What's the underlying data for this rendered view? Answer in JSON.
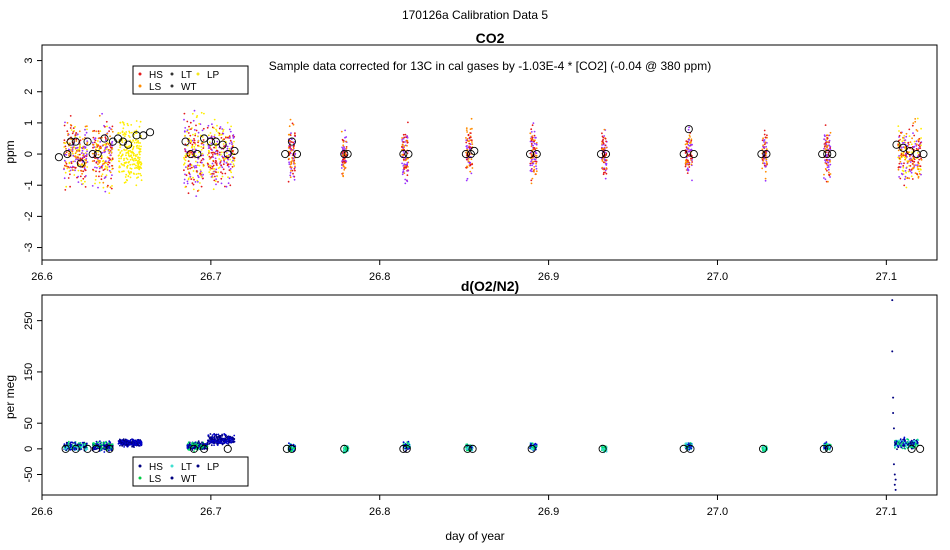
{
  "figure": {
    "title": "170126a   Calibration Data 5",
    "xlabel": "day of year"
  },
  "chart_data": [
    {
      "type": "scatter",
      "title": "CO2",
      "ylabel": "ppm",
      "annotation": "Sample data corrected for 13C in cal gases by -1.03E-4 * [CO2] (-0.04 @ 380 ppm)",
      "xlim": [
        26.6,
        27.13
      ],
      "ylim": [
        -3.4,
        3.5
      ],
      "xticks": [
        26.6,
        26.7,
        26.8,
        26.9,
        27.0,
        27.1
      ],
      "yticks": [
        -3,
        -2,
        -1,
        0,
        1,
        2,
        3
      ],
      "legend": {
        "position": "top-left",
        "entries": [
          {
            "name": "HS",
            "color": "#e41a1c"
          },
          {
            "name": "LT",
            "color": "#333333"
          },
          {
            "name": "LP",
            "color": "#f5e61a"
          },
          {
            "name": "LS",
            "color": "#ff8c00"
          },
          {
            "name": "WT",
            "color": "#333333"
          }
        ]
      },
      "series_colors": {
        "HS": "#e41a1c",
        "LS": "#ff8c00",
        "LP": "#ffee00",
        "WT": "#9933ff"
      },
      "clusters": [
        {
          "x": 26.62,
          "w": 0.014,
          "spread": 1.4,
          "colors": [
            "WT",
            "HS",
            "LS",
            "LP"
          ]
        },
        {
          "x": 26.636,
          "w": 0.012,
          "spread": 1.5,
          "colors": [
            "HS",
            "WT",
            "LP",
            "LS"
          ]
        },
        {
          "x": 26.652,
          "w": 0.014,
          "spread": 1.4,
          "colors": [
            "LP"
          ]
        },
        {
          "x": 26.69,
          "w": 0.012,
          "spread": 1.6,
          "colors": [
            "LP",
            "WT",
            "HS"
          ]
        },
        {
          "x": 26.706,
          "w": 0.016,
          "spread": 1.5,
          "colors": [
            "LP",
            "WT",
            "HS"
          ]
        },
        {
          "x": 26.748,
          "w": 0.004,
          "spread": 1.2,
          "colors": [
            "HS",
            "WT",
            "LS"
          ]
        },
        {
          "x": 26.779,
          "w": 0.003,
          "spread": 1.0,
          "colors": [
            "LS",
            "HS",
            "WT"
          ]
        },
        {
          "x": 26.815,
          "w": 0.004,
          "spread": 1.2,
          "colors": [
            "HS",
            "WT",
            "LS"
          ]
        },
        {
          "x": 26.853,
          "w": 0.004,
          "spread": 1.2,
          "colors": [
            "HS",
            "LS",
            "WT"
          ]
        },
        {
          "x": 26.891,
          "w": 0.004,
          "spread": 1.2,
          "colors": [
            "HS",
            "LS",
            "WT"
          ]
        },
        {
          "x": 26.933,
          "w": 0.003,
          "spread": 1.0,
          "colors": [
            "HS",
            "LS",
            "WT"
          ]
        },
        {
          "x": 26.983,
          "w": 0.004,
          "spread": 1.2,
          "colors": [
            "HS",
            "WT",
            "LS"
          ]
        },
        {
          "x": 27.028,
          "w": 0.003,
          "spread": 1.0,
          "colors": [
            "LS",
            "HS",
            "WT"
          ]
        },
        {
          "x": 27.065,
          "w": 0.004,
          "spread": 1.2,
          "colors": [
            "HS",
            "WT",
            "LS"
          ]
        },
        {
          "x": 27.114,
          "w": 0.014,
          "spread": 1.3,
          "colors": [
            "LP",
            "WT",
            "HS",
            "LS"
          ]
        }
      ],
      "means": [
        {
          "x": 26.61,
          "y": -0.1
        },
        {
          "x": 26.615,
          "y": 0.0
        },
        {
          "x": 26.617,
          "y": 0.4
        },
        {
          "x": 26.62,
          "y": 0.4
        },
        {
          "x": 26.623,
          "y": -0.3
        },
        {
          "x": 26.627,
          "y": 0.4
        },
        {
          "x": 26.63,
          "y": 0.0
        },
        {
          "x": 26.633,
          "y": 0.0
        },
        {
          "x": 26.637,
          "y": 0.5
        },
        {
          "x": 26.642,
          "y": 0.4
        },
        {
          "x": 26.645,
          "y": 0.5
        },
        {
          "x": 26.648,
          "y": 0.4
        },
        {
          "x": 26.651,
          "y": 0.3
        },
        {
          "x": 26.656,
          "y": 0.6
        },
        {
          "x": 26.66,
          "y": 0.6
        },
        {
          "x": 26.664,
          "y": 0.7
        },
        {
          "x": 26.685,
          "y": 0.4
        },
        {
          "x": 26.688,
          "y": 0.0
        },
        {
          "x": 26.692,
          "y": 0.0
        },
        {
          "x": 26.696,
          "y": 0.5
        },
        {
          "x": 26.7,
          "y": 0.4
        },
        {
          "x": 26.703,
          "y": 0.4
        },
        {
          "x": 26.707,
          "y": 0.3
        },
        {
          "x": 26.71,
          "y": 0.0
        },
        {
          "x": 26.714,
          "y": 0.1
        },
        {
          "x": 26.744,
          "y": 0.0
        },
        {
          "x": 26.748,
          "y": 0.4
        },
        {
          "x": 26.751,
          "y": 0.0
        },
        {
          "x": 26.779,
          "y": 0.0
        },
        {
          "x": 26.781,
          "y": 0.0
        },
        {
          "x": 26.814,
          "y": 0.0
        },
        {
          "x": 26.817,
          "y": 0.0
        },
        {
          "x": 26.851,
          "y": 0.0
        },
        {
          "x": 26.854,
          "y": 0.0
        },
        {
          "x": 26.856,
          "y": 0.1
        },
        {
          "x": 26.889,
          "y": 0.0
        },
        {
          "x": 26.893,
          "y": 0.0
        },
        {
          "x": 26.931,
          "y": 0.0
        },
        {
          "x": 26.934,
          "y": 0.0
        },
        {
          "x": 26.98,
          "y": 0.0
        },
        {
          "x": 26.983,
          "y": 0.8
        },
        {
          "x": 26.986,
          "y": 0.0
        },
        {
          "x": 27.026,
          "y": 0.0
        },
        {
          "x": 27.029,
          "y": 0.0
        },
        {
          "x": 27.062,
          "y": 0.0
        },
        {
          "x": 27.065,
          "y": 0.0
        },
        {
          "x": 27.068,
          "y": 0.0
        },
        {
          "x": 27.106,
          "y": 0.3
        },
        {
          "x": 27.11,
          "y": 0.2
        },
        {
          "x": 27.114,
          "y": 0.1
        },
        {
          "x": 27.118,
          "y": 0.0
        },
        {
          "x": 27.122,
          "y": 0.0
        }
      ]
    },
    {
      "type": "scatter",
      "title": "d(O2/N2)",
      "ylabel": "per meg",
      "xlim": [
        26.6,
        27.13
      ],
      "ylim": [
        -90,
        300
      ],
      "xticks": [
        26.6,
        26.7,
        26.8,
        26.9,
        27.0,
        27.1
      ],
      "yticks": [
        -50,
        0,
        50,
        150,
        250
      ],
      "legend": {
        "position": "bottom-left",
        "entries": [
          {
            "name": "HS",
            "color": "#000080"
          },
          {
            "name": "LT",
            "color": "#40e0d0"
          },
          {
            "name": "LP",
            "color": "#000080"
          },
          {
            "name": "LS",
            "color": "#00cc44"
          },
          {
            "name": "WT",
            "color": "#000080"
          }
        ]
      },
      "series_colors": {
        "HS": "#000080",
        "LS": "#00dd66",
        "LT": "#40e0e0",
        "LP": "#00008b",
        "WT": "#0000cd"
      },
      "clusters": [
        {
          "x": 26.62,
          "w": 0.014,
          "center": 5,
          "spread": 12,
          "colors": [
            "HS",
            "LS",
            "LT",
            "WT"
          ]
        },
        {
          "x": 26.636,
          "w": 0.012,
          "center": 5,
          "spread": 12,
          "colors": [
            "HS",
            "LS",
            "WT"
          ]
        },
        {
          "x": 26.652,
          "w": 0.014,
          "center": 12,
          "spread": 10,
          "colors": [
            "HS",
            "WT"
          ]
        },
        {
          "x": 26.692,
          "w": 0.012,
          "center": 5,
          "spread": 12,
          "colors": [
            "HS",
            "LS",
            "WT"
          ]
        },
        {
          "x": 26.706,
          "w": 0.016,
          "center": 18,
          "spread": 14,
          "colors": [
            "HS",
            "WT"
          ]
        },
        {
          "x": 26.748,
          "w": 0.004,
          "center": 2,
          "spread": 10,
          "colors": [
            "LS",
            "LT",
            "WT"
          ]
        },
        {
          "x": 26.78,
          "w": 0.003,
          "center": 0,
          "spread": 10,
          "colors": [
            "LS",
            "LT"
          ]
        },
        {
          "x": 26.816,
          "w": 0.004,
          "center": 5,
          "spread": 10,
          "colors": [
            "LS",
            "LT",
            "WT"
          ]
        },
        {
          "x": 26.853,
          "w": 0.004,
          "center": 2,
          "spread": 9,
          "colors": [
            "LS",
            "LT",
            "WT"
          ]
        },
        {
          "x": 26.891,
          "w": 0.004,
          "center": 5,
          "spread": 10,
          "colors": [
            "LS",
            "LT",
            "WT"
          ]
        },
        {
          "x": 26.933,
          "w": 0.003,
          "center": 0,
          "spread": 9,
          "colors": [
            "LS",
            "LT"
          ]
        },
        {
          "x": 26.983,
          "w": 0.004,
          "center": 5,
          "spread": 10,
          "colors": [
            "LS",
            "LT",
            "WT"
          ]
        },
        {
          "x": 27.028,
          "w": 0.003,
          "center": 0,
          "spread": 9,
          "colors": [
            "LS",
            "LT"
          ]
        },
        {
          "x": 27.065,
          "w": 0.004,
          "center": 5,
          "spread": 10,
          "colors": [
            "LS",
            "LT",
            "WT"
          ]
        },
        {
          "x": 27.112,
          "w": 0.014,
          "center": 10,
          "spread": 14,
          "colors": [
            "HS",
            "LS",
            "LT",
            "WT"
          ]
        }
      ],
      "outliers": [
        {
          "x": 27.1035,
          "y": 290
        },
        {
          "x": 27.1035,
          "y": 190
        },
        {
          "x": 27.104,
          "y": 100
        },
        {
          "x": 27.104,
          "y": 70
        },
        {
          "x": 27.1045,
          "y": 40
        },
        {
          "x": 27.1045,
          "y": -30
        },
        {
          "x": 27.105,
          "y": -50
        },
        {
          "x": 27.105,
          "y": -70
        },
        {
          "x": 27.1055,
          "y": -80
        },
        {
          "x": 27.1055,
          "y": -60
        }
      ],
      "means": [
        {
          "x": 26.614,
          "y": 0
        },
        {
          "x": 26.62,
          "y": 0
        },
        {
          "x": 26.627,
          "y": 0
        },
        {
          "x": 26.632,
          "y": 0
        },
        {
          "x": 26.64,
          "y": 0
        },
        {
          "x": 26.69,
          "y": 0
        },
        {
          "x": 26.696,
          "y": 0
        },
        {
          "x": 26.71,
          "y": 0
        },
        {
          "x": 26.745,
          "y": 0
        },
        {
          "x": 26.748,
          "y": 0
        },
        {
          "x": 26.779,
          "y": 0
        },
        {
          "x": 26.814,
          "y": 0
        },
        {
          "x": 26.816,
          "y": 0
        },
        {
          "x": 26.852,
          "y": 0
        },
        {
          "x": 26.855,
          "y": 0
        },
        {
          "x": 26.89,
          "y": 0
        },
        {
          "x": 26.932,
          "y": 0
        },
        {
          "x": 26.98,
          "y": 0
        },
        {
          "x": 26.984,
          "y": 0
        },
        {
          "x": 27.027,
          "y": 0
        },
        {
          "x": 27.063,
          "y": 0
        },
        {
          "x": 27.066,
          "y": 0
        },
        {
          "x": 27.115,
          "y": 0
        },
        {
          "x": 27.12,
          "y": 0
        }
      ]
    }
  ]
}
